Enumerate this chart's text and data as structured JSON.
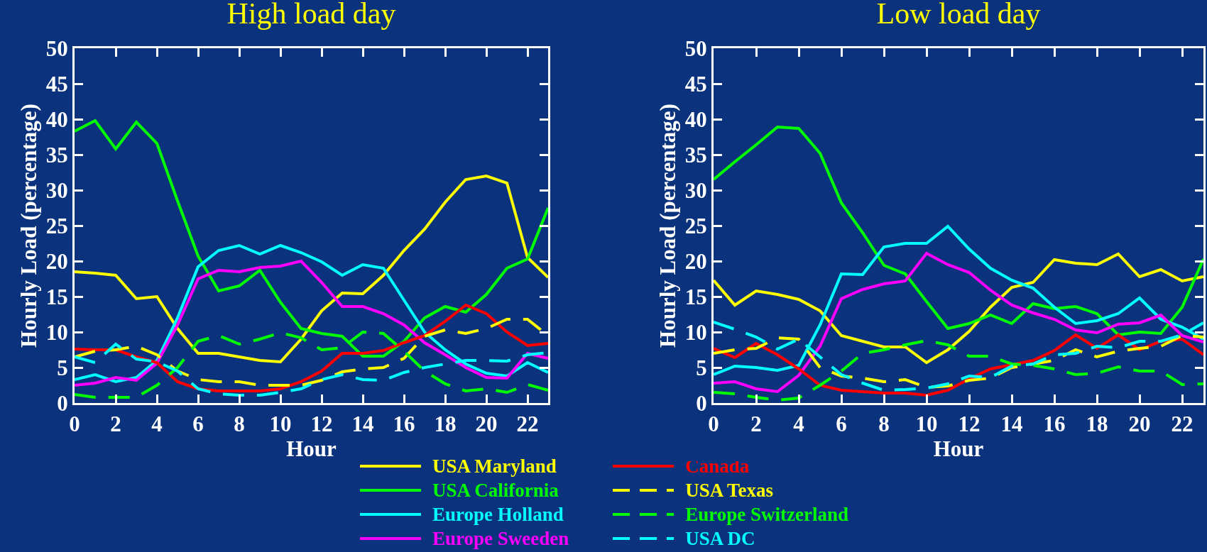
{
  "chart_data": [
    {
      "type": "line",
      "title": "High load day",
      "xlabel": "Hour",
      "ylabel": "Hourly Load (percentage)",
      "x": [
        0,
        1,
        2,
        3,
        4,
        5,
        6,
        7,
        8,
        9,
        10,
        11,
        12,
        13,
        14,
        15,
        16,
        17,
        18,
        19,
        20,
        21,
        22,
        23
      ],
      "xlim": [
        0,
        23
      ],
      "xticks": [
        0,
        2,
        4,
        6,
        8,
        10,
        12,
        14,
        16,
        18,
        20,
        22
      ],
      "ylim": [
        0,
        50
      ],
      "yticks": [
        0,
        5,
        10,
        15,
        20,
        25,
        30,
        35,
        40,
        45,
        50
      ],
      "grid": false,
      "legend": "bottom",
      "marker": "none",
      "series": [
        {
          "name": "USA Maryland",
          "color": "#ffff00",
          "line_style": "solid",
          "values": [
            18.5,
            18.3,
            18,
            14.7,
            15,
            10.5,
            7,
            7,
            6.5,
            6,
            5.8,
            9,
            13,
            15.5,
            15.4,
            18,
            21.5,
            24.5,
            28.3,
            31.5,
            32,
            31,
            20.5,
            17.7
          ]
        },
        {
          "name": "USA California",
          "color": "#00ff00",
          "line_style": "solid",
          "values": [
            38.3,
            39.8,
            35.8,
            39.6,
            36.6,
            28.5,
            20.7,
            15.8,
            16.5,
            18.7,
            14.2,
            10.5,
            9.8,
            9.4,
            6.6,
            6.6,
            8.7,
            12,
            13.6,
            12.8,
            15.3,
            19,
            20.3,
            27.5
          ]
        },
        {
          "name": "Europe Holland",
          "color": "#00ffff",
          "line_style": "solid",
          "values": [
            3.3,
            4,
            3,
            3.6,
            6,
            12,
            19.2,
            21.5,
            22.2,
            21,
            22.2,
            21.2,
            19.9,
            18,
            19.5,
            19,
            14.5,
            10,
            7.5,
            5.5,
            4.2,
            3.8,
            5.7,
            4.3
          ]
        },
        {
          "name": "Europe Sweeden",
          "color": "#ff00ff",
          "line_style": "solid",
          "values": [
            2.5,
            2.8,
            3.6,
            3.2,
            5.6,
            11,
            17.5,
            18.7,
            18.5,
            19.1,
            19.3,
            20,
            17,
            13.6,
            13.6,
            12.6,
            11,
            8.5,
            6.8,
            5,
            3.6,
            3.5,
            7,
            6.3
          ]
        },
        {
          "name": "Canada",
          "color": "#ff0000",
          "line_style": "solid",
          "values": [
            7.6,
            7.5,
            7.5,
            6.5,
            5.7,
            3,
            2,
            1.7,
            1.7,
            1.7,
            2,
            3,
            4.5,
            7,
            7,
            7.4,
            8.5,
            9.5,
            11.5,
            13.8,
            12.6,
            10,
            8.1,
            8.4
          ]
        },
        {
          "name": "USA Texas",
          "color": "#ffff00",
          "line_style": "dashed",
          "values": [
            6.5,
            7.3,
            7.5,
            8,
            6.8,
            4.5,
            3.3,
            3,
            3,
            2.5,
            2.5,
            2.5,
            3.2,
            4.4,
            4.8,
            5,
            6.3,
            9.4,
            10.3,
            9.8,
            10.5,
            11.8,
            11.8,
            9.5
          ]
        },
        {
          "name": "Europe Switzerland",
          "color": "#00ff00",
          "line_style": "dashed",
          "values": [
            1.2,
            0.8,
            0.8,
            0.8,
            2.5,
            5,
            8.7,
            9.5,
            8.3,
            9,
            9.9,
            9.2,
            7.5,
            7.8,
            10,
            9.8,
            7.3,
            4.5,
            2.7,
            1.7,
            2,
            1.5,
            2.6,
            1.8
          ]
        },
        {
          "name": "USA DC",
          "color": "#00ffff",
          "line_style": "dashed",
          "values": [
            6.5,
            5.7,
            8.3,
            6.2,
            5.8,
            4.5,
            2,
            1.3,
            1.1,
            1.1,
            1.5,
            2,
            3.3,
            4,
            3.3,
            3.2,
            4.3,
            5,
            5.5,
            6,
            6,
            5.9,
            6.8,
            7.1
          ]
        }
      ]
    },
    {
      "type": "line",
      "title": "Low load day",
      "xlabel": "Hour",
      "ylabel": "Hourly Load (percentage)",
      "x": [
        0,
        1,
        2,
        3,
        4,
        5,
        6,
        7,
        8,
        9,
        10,
        11,
        12,
        13,
        14,
        15,
        16,
        17,
        18,
        19,
        20,
        21,
        22,
        23
      ],
      "xlim": [
        0,
        23
      ],
      "xticks": [
        0,
        2,
        4,
        6,
        8,
        10,
        12,
        14,
        16,
        18,
        20,
        22
      ],
      "ylim": [
        0,
        50
      ],
      "yticks": [
        0,
        5,
        10,
        15,
        20,
        25,
        30,
        35,
        40,
        45,
        50
      ],
      "grid": false,
      "marker": "none",
      "series": [
        {
          "color": "#ffff00",
          "line_style": "solid",
          "values": [
            17.3,
            13.8,
            15.8,
            15.3,
            14.6,
            13,
            9.5,
            8.7,
            7.9,
            7.9,
            5.7,
            7.5,
            10.1,
            13.5,
            16.3,
            17,
            20.2,
            19.7,
            19.5,
            21,
            17.8,
            18.8,
            17.2,
            17.8
          ]
        },
        {
          "color": "#00ff00",
          "line_style": "solid",
          "values": [
            31.5,
            34,
            36.4,
            38.9,
            38.7,
            35.2,
            28.2,
            24,
            19.4,
            18.2,
            14.3,
            10.5,
            11.2,
            12.4,
            11.2,
            14,
            13.3,
            13.6,
            12.6,
            9.6,
            10,
            9.8,
            13.5,
            20.3
          ]
        },
        {
          "color": "#00ffff",
          "line_style": "solid",
          "values": [
            4,
            5.2,
            5,
            4.6,
            5.3,
            11,
            18.2,
            18.1,
            22,
            22.5,
            22.5,
            24.9,
            21.7,
            19,
            17.3,
            16.2,
            13.5,
            11.2,
            11.6,
            12.6,
            14.8,
            11.8,
            10.7,
            9
          ]
        },
        {
          "color": "#ff00ff",
          "line_style": "solid",
          "values": [
            2.8,
            3,
            2,
            1.6,
            3.9,
            8,
            14.7,
            16,
            16.8,
            17.2,
            21.1,
            19.5,
            18.4,
            15.9,
            13.8,
            12.7,
            11.8,
            10.3,
            9.9,
            11.1,
            11.3,
            12.4,
            9.5,
            8.6
          ]
        },
        {
          "color": "#ff0000",
          "line_style": "solid",
          "values": [
            7.7,
            6.4,
            8.4,
            6.8,
            4.8,
            2.5,
            1.8,
            1.6,
            1.4,
            1.4,
            1.1,
            1.8,
            3.4,
            4.8,
            5.4,
            6,
            7.4,
            9.6,
            7.7,
            9.6,
            7.5,
            8.7,
            9,
            6.8
          ]
        },
        {
          "color": "#ffff00",
          "line_style": "dashed",
          "values": [
            7,
            7.5,
            7.7,
            9.2,
            9,
            5,
            3.8,
            3.5,
            3,
            3.3,
            2.2,
            2.4,
            3.2,
            3.5,
            5,
            5.5,
            6,
            7.5,
            6.5,
            7.3,
            7.7,
            8,
            9.5,
            9.3
          ]
        },
        {
          "color": "#00ff00",
          "line_style": "dashed",
          "values": [
            1.5,
            1.3,
            0.8,
            0.4,
            0.7,
            2.5,
            4.5,
            7,
            7.5,
            8.2,
            8.8,
            8.2,
            6.6,
            6.6,
            5.5,
            5.3,
            4.8,
            4,
            4.2,
            5.1,
            4.5,
            4.5,
            2.6,
            2.7
          ]
        },
        {
          "color": "#00ffff",
          "line_style": "dashed",
          "values": [
            11.4,
            10.4,
            9.3,
            7.6,
            9,
            6.5,
            4,
            2.8,
            1.8,
            1.9,
            2.1,
            2.7,
            3.8,
            3.6,
            5.2,
            5.5,
            6.8,
            7,
            8,
            7.8,
            8.7,
            8.7,
            9.6,
            11.3
          ]
        }
      ]
    }
  ]
}
